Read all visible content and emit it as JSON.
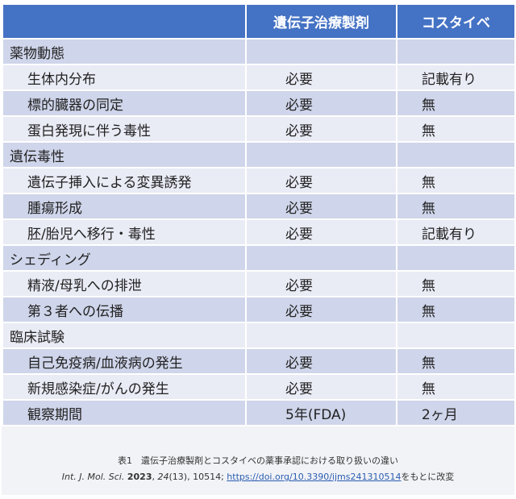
{
  "table": {
    "headers": [
      "",
      "遺伝子治療製剤",
      "コスタイベ"
    ],
    "rows": [
      {
        "label": "薬物動態",
        "sub": false,
        "c2": "",
        "c3": ""
      },
      {
        "label": "生体内分布",
        "sub": true,
        "c2": "必要",
        "c3": "記載有り"
      },
      {
        "label": "標的臓器の同定",
        "sub": true,
        "c2": "必要",
        "c3": "無"
      },
      {
        "label": "蛋白発現に伴う毒性",
        "sub": true,
        "c2": "必要",
        "c3": "無"
      },
      {
        "label": "遺伝毒性",
        "sub": false,
        "c2": "",
        "c3": ""
      },
      {
        "label": "遺伝子挿入による変異誘発",
        "sub": true,
        "c2": "必要",
        "c3": "無"
      },
      {
        "label": "腫瘍形成",
        "sub": true,
        "c2": "必要",
        "c3": "無"
      },
      {
        "label": "胚/胎児へ移行・毒性",
        "sub": true,
        "c2": "必要",
        "c3": "記載有り"
      },
      {
        "label": "シェディング",
        "sub": false,
        "c2": "",
        "c3": ""
      },
      {
        "label": "精液/母乳への排泄",
        "sub": true,
        "c2": "必要",
        "c3": "無"
      },
      {
        "label": "第３者への伝播",
        "sub": true,
        "c2": "必要",
        "c3": "無"
      },
      {
        "label": "臨床試験",
        "sub": false,
        "c2": "",
        "c3": ""
      },
      {
        "label": "自己免疫病/血液病の発生",
        "sub": true,
        "c2": "必要",
        "c3": "無"
      },
      {
        "label": "新規感染症/がんの発生",
        "sub": true,
        "c2": "必要",
        "c3": "無"
      },
      {
        "label": "観察期間",
        "sub": true,
        "c2": "5年(FDA)",
        "c3": "2ヶ月"
      }
    ]
  },
  "caption": {
    "title": "表1　遺伝子治療製剤とコスタイベの薬事承認における取り扱いの違い",
    "journal": "Int. J. Mol. Sci.",
    "year": "2023",
    "volume": "24",
    "issue_pages": "(13), 10514; ",
    "link": "https://doi.org/10.3390/ijms241310514",
    "suffix": "をもとに改変"
  },
  "colors": {
    "header": "#4472c4",
    "row_dark": "#cfd5ea",
    "row_light": "#e9ebf5",
    "link": "#2a5db0"
  }
}
